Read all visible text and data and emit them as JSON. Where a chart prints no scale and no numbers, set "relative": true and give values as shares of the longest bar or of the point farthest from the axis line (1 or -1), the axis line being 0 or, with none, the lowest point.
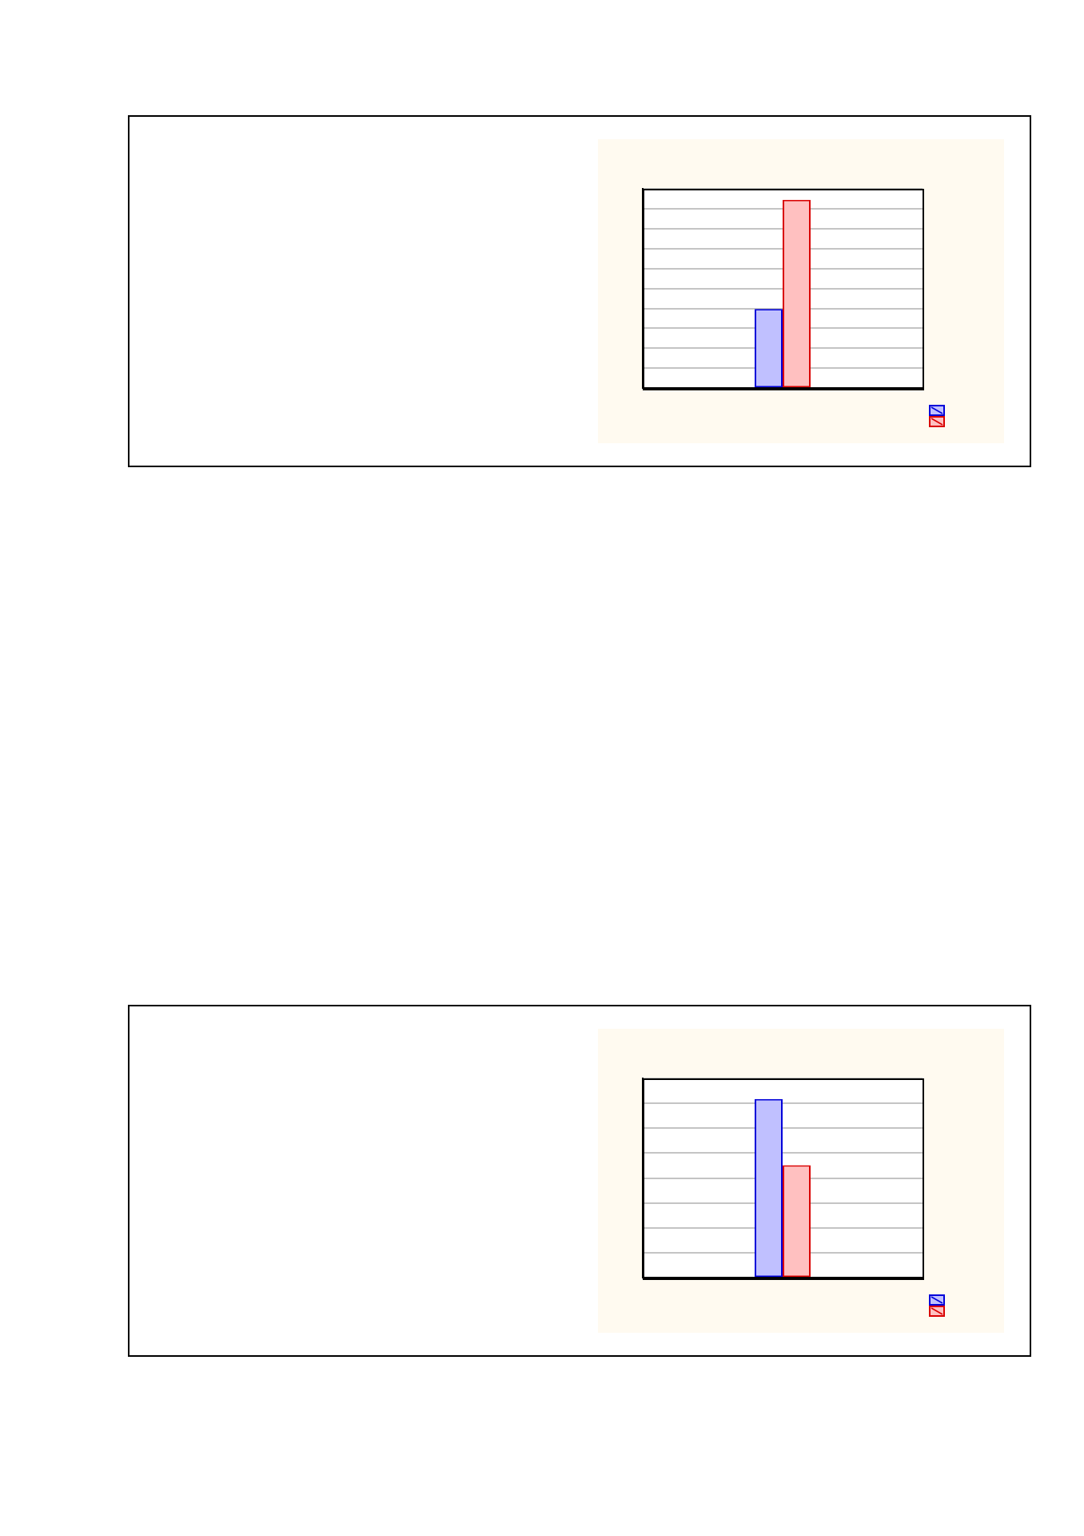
{
  "chart_data": [
    {
      "type": "bar",
      "relative": true,
      "categories": [
        null
      ],
      "series": [
        {
          "color": "#c0c0ff",
          "values": [
            0.42
          ]
        },
        {
          "color": "#ffc0c0",
          "values": [
            1
          ]
        }
      ],
      "grid": "y"
    },
    {
      "type": "bar",
      "relative": true,
      "categories": [
        null
      ],
      "series": [
        {
          "color": "#c0c0ff",
          "values": [
            1
          ]
        },
        {
          "color": "#ffc0c0",
          "values": [
            0.63
          ]
        }
      ],
      "grid": "y"
    }
  ]
}
